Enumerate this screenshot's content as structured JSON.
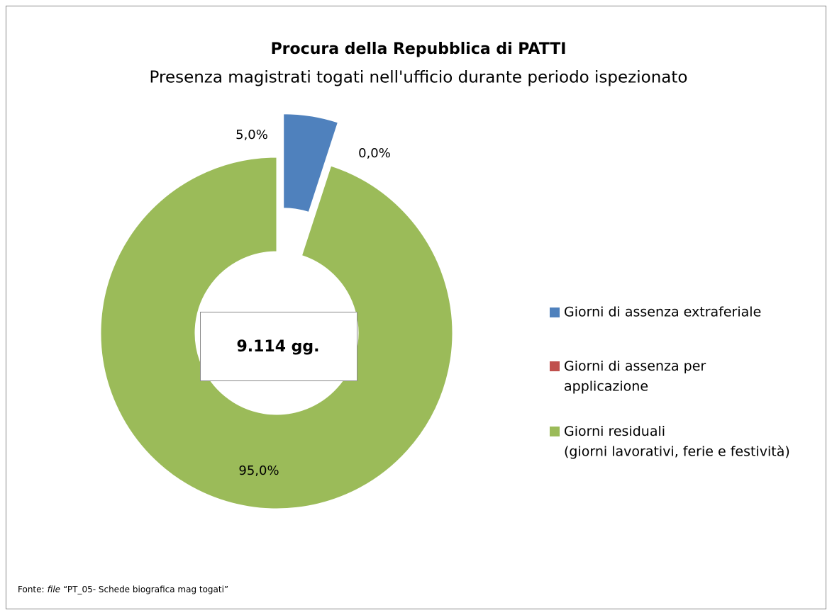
{
  "chart_data": {
    "type": "donut",
    "title": "Procura della Repubblica di PATTI",
    "subtitle": "Presenza magistrati togati nell'ufficio durante periodo ispezionato",
    "categories": [
      "Giorni di assenza extraferiale",
      "Giorni di assenza per\napplicazione",
      "Giorni residuali\n(giorni lavorativi, ferie e festività)"
    ],
    "values": [
      5.0,
      0.0,
      95.0
    ],
    "value_labels": [
      "5,0%",
      "0,0%",
      "95,0%"
    ],
    "colors": [
      "#4f81bd",
      "#c0504d",
      "#9bbb59"
    ],
    "exploded": [
      true,
      false,
      false
    ],
    "center_label": "9.114 gg.",
    "legend": "right",
    "source": [
      "Fonte:",
      "file",
      "“PT_05- Schede biografica mag togati”"
    ]
  }
}
